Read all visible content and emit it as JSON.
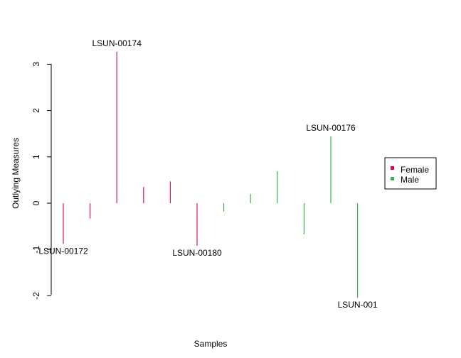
{
  "chart_data": {
    "type": "bar",
    "xlabel": "Samples",
    "ylabel": "Outlying Measures",
    "y_ticks": [
      "-2",
      "-1",
      "0",
      "1",
      "2",
      "3"
    ],
    "y_tick_values": [
      -2,
      -1,
      0,
      1,
      2,
      3
    ],
    "ylim": [
      -2.05,
      3.3
    ],
    "grid": false,
    "legend": {
      "placement": "right",
      "entries": [
        {
          "name": "Female",
          "color": "#e6004d"
        },
        {
          "name": "Male",
          "color": "#33b34d"
        }
      ]
    },
    "series": [
      {
        "name": "Female",
        "color": "#d4145a"
      },
      {
        "name": "Male",
        "color": "#3cb44b"
      }
    ],
    "samples": [
      {
        "group": 0,
        "value": -0.88,
        "label": "LSUN-00172"
      },
      {
        "group": 0,
        "value": -0.33,
        "label": ""
      },
      {
        "group": 0,
        "value": 3.27,
        "label": "LSUN-00174"
      },
      {
        "group": 0,
        "value": 0.35,
        "label": ""
      },
      {
        "group": 0,
        "value": 0.47,
        "label": ""
      },
      {
        "group": 0,
        "value": -0.92,
        "label": "LSUN-00180"
      },
      {
        "group": 1,
        "value": -0.18,
        "label": ""
      },
      {
        "group": 1,
        "value": 0.2,
        "label": ""
      },
      {
        "group": 1,
        "value": 0.69,
        "label": ""
      },
      {
        "group": 1,
        "value": -0.67,
        "label": ""
      },
      {
        "group": 1,
        "value": 1.44,
        "label": "LSUN-00176"
      },
      {
        "group": 1,
        "value": -2.04,
        "label": "LSUN-001"
      }
    ]
  }
}
